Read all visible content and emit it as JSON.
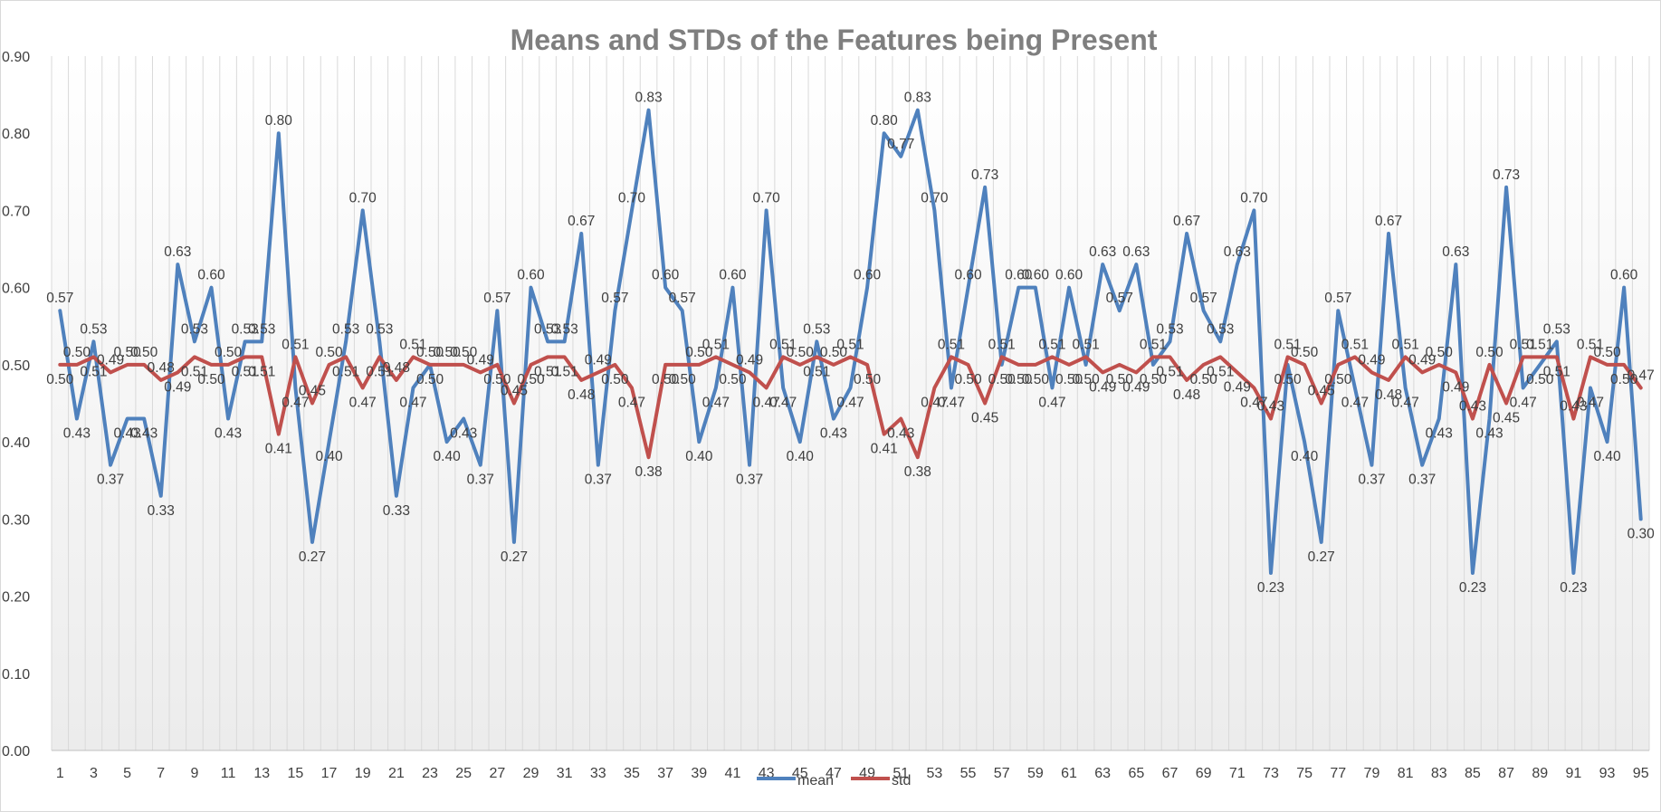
{
  "chart_data": {
    "type": "line",
    "title": "Means and STDs of the Features being Present",
    "xlabel": "",
    "ylabel": "",
    "ylim": [
      0,
      0.9
    ],
    "y_ticks": [
      "0.00",
      "0.10",
      "0.20",
      "0.30",
      "0.40",
      "0.50",
      "0.60",
      "0.70",
      "0.80",
      "0.90"
    ],
    "x": [
      1,
      2,
      3,
      4,
      5,
      6,
      7,
      8,
      9,
      10,
      11,
      12,
      13,
      14,
      15,
      16,
      17,
      18,
      19,
      20,
      21,
      22,
      23,
      24,
      25,
      26,
      27,
      28,
      29,
      30,
      31,
      32,
      33,
      34,
      35,
      36,
      37,
      38,
      39,
      40,
      41,
      42,
      43,
      44,
      45,
      46,
      47,
      48,
      49,
      50,
      51,
      52,
      53,
      54,
      55,
      56,
      57,
      58,
      59,
      60,
      61,
      62,
      63,
      64,
      65,
      66,
      67,
      68,
      69,
      70,
      71,
      72,
      73,
      74,
      75,
      76,
      77,
      78,
      79,
      80,
      81,
      82,
      83,
      84,
      85,
      86,
      87,
      88,
      89,
      90,
      91,
      92,
      93,
      94,
      95
    ],
    "x_tick_labels": [
      "1",
      "3",
      "5",
      "7",
      "9",
      "11",
      "13",
      "15",
      "17",
      "19",
      "21",
      "23",
      "25",
      "27",
      "29",
      "31",
      "33",
      "35",
      "37",
      "39",
      "41",
      "43",
      "45",
      "47",
      "49",
      "51",
      "53",
      "55",
      "57",
      "59",
      "61",
      "63",
      "65",
      "67",
      "69",
      "71",
      "73",
      "75",
      "77",
      "79",
      "81",
      "83",
      "85",
      "87",
      "89",
      "91",
      "93",
      "95"
    ],
    "grid": "vertical gridlines",
    "legend_position": "bottom",
    "series": [
      {
        "name": "mean",
        "color": "#4f81bd",
        "values": [
          0.57,
          0.43,
          0.53,
          0.37,
          0.43,
          0.43,
          0.33,
          0.63,
          0.53,
          0.6,
          0.43,
          0.53,
          0.53,
          0.8,
          0.47,
          0.27,
          0.4,
          0.53,
          0.7,
          0.53,
          0.33,
          0.47,
          0.5,
          0.4,
          0.43,
          0.37,
          0.57,
          0.27,
          0.6,
          0.53,
          0.53,
          0.67,
          0.37,
          0.57,
          0.7,
          0.83,
          0.6,
          0.57,
          0.4,
          0.47,
          0.6,
          0.37,
          0.7,
          0.47,
          0.4,
          0.53,
          0.43,
          0.47,
          0.6,
          0.8,
          0.77,
          0.83,
          0.7,
          0.47,
          0.6,
          0.73,
          0.5,
          0.6,
          0.6,
          0.47,
          0.6,
          0.5,
          0.63,
          0.57,
          0.63,
          0.5,
          0.53,
          0.67,
          0.57,
          0.53,
          0.63,
          0.7,
          0.23,
          0.5,
          0.4,
          0.27,
          0.57,
          0.47,
          0.37,
          0.67,
          0.47,
          0.37,
          0.43,
          0.63,
          0.23,
          0.43,
          0.73,
          0.47,
          0.5,
          0.53,
          0.23,
          0.47,
          0.4,
          0.6,
          0.3
        ],
        "labels": [
          "0.57",
          "0.43",
          "0.53",
          "0.37",
          "0.43",
          "0.43",
          "0.33",
          "0.63",
          "0.53",
          "0.60",
          "0.43",
          "0.53",
          "0.53",
          "0.80",
          "0.47",
          "0.27",
          "0.40",
          "0.53",
          "0.70",
          "0.53",
          "0.33",
          "0.47",
          "0.50",
          "0.40",
          "0.43",
          "0.37",
          "0.57",
          "0.27",
          "0.60",
          "0.53",
          "0.53",
          "0.67",
          "0.37",
          "0.57",
          "0.70",
          "0.83",
          "0.60",
          "0.57",
          "0.40",
          "0.47",
          "0.60",
          "0.37",
          "0.70",
          "0.47",
          "0.40",
          "0.53",
          "0.43",
          "0.47",
          "0.60",
          "0.80",
          "0.77",
          "0.83",
          "0.70",
          "0.47",
          "0.60",
          "0.73",
          "0.50",
          "0.60",
          "0.60",
          "0.47",
          "0.60",
          "0.50",
          "0.63",
          "0.57",
          "0.63",
          "0.50",
          "0.53",
          "0.67",
          "0.57",
          "0.53",
          "0.63",
          "0.70",
          "0.23",
          "0.50",
          "0.40",
          "0.27",
          "0.57",
          "0.47",
          "0.37",
          "0.67",
          "0.47",
          "0.37",
          "0.43",
          "0.63",
          "0.23",
          "0.43",
          "0.73",
          "0.47",
          "0.50",
          "0.53",
          "0.23",
          "0.47",
          "0.40",
          "0.60",
          "0.30"
        ]
      },
      {
        "name": "std",
        "color": "#c0504d",
        "values": [
          0.5,
          0.5,
          0.51,
          0.49,
          0.5,
          0.5,
          0.48,
          0.49,
          0.51,
          0.5,
          0.5,
          0.51,
          0.51,
          0.41,
          0.51,
          0.45,
          0.5,
          0.51,
          0.47,
          0.51,
          0.48,
          0.51,
          0.5,
          0.5,
          0.5,
          0.49,
          0.5,
          0.45,
          0.5,
          0.51,
          0.51,
          0.48,
          0.49,
          0.5,
          0.47,
          0.38,
          0.5,
          0.5,
          0.5,
          0.51,
          0.5,
          0.49,
          0.47,
          0.51,
          0.5,
          0.51,
          0.5,
          0.51,
          0.5,
          0.41,
          0.43,
          0.38,
          0.47,
          0.51,
          0.5,
          0.45,
          0.51,
          0.5,
          0.5,
          0.51,
          0.5,
          0.51,
          0.49,
          0.5,
          0.49,
          0.51,
          0.51,
          0.48,
          0.5,
          0.51,
          0.49,
          0.47,
          0.43,
          0.51,
          0.5,
          0.45,
          0.5,
          0.51,
          0.49,
          0.48,
          0.51,
          0.49,
          0.5,
          0.49,
          0.43,
          0.5,
          0.45,
          0.51,
          0.51,
          0.51,
          0.43,
          0.51,
          0.5,
          0.5,
          0.47
        ],
        "labels": [
          "0.50",
          "0.50",
          "0.51",
          "0.49",
          "0.50",
          "0.50",
          "0.48",
          "0.49",
          "0.51",
          "0.50",
          "0.50",
          "0.51",
          "0.51",
          "0.41",
          "0.51",
          "0.45",
          "0.50",
          "0.51",
          "0.47",
          "0.51",
          "0.48",
          "0.51",
          "0.50",
          "0.50",
          "0.50",
          "0.49",
          "0.50",
          "0.45",
          "0.50",
          "0.51",
          "0.51",
          "0.48",
          "0.49",
          "0.50",
          "0.47",
          "0.38",
          "0.50",
          "0.50",
          "0.50",
          "0.51",
          "0.50",
          "0.49",
          "0.47",
          "0.51",
          "0.50",
          "0.51",
          "0.50",
          "0.51",
          "0.50",
          "0.41",
          "0.43",
          "0.38",
          "0.47",
          "0.51",
          "0.50",
          "0.45",
          "0.51",
          "0.50",
          "0.50",
          "0.51",
          "0.50",
          "0.51",
          "0.49",
          "0.50",
          "0.49",
          "0.51",
          "0.51",
          "0.48",
          "0.50",
          "0.51",
          "0.49",
          "0.47",
          "0.43",
          "0.51",
          "0.50",
          "0.45",
          "0.50",
          "0.51",
          "0.49",
          "0.48",
          "0.51",
          "0.49",
          "0.50",
          "0.49",
          "0.43",
          "0.50",
          "0.45",
          "0.51",
          "0.51",
          "0.51",
          "0.43",
          "0.51",
          "0.50",
          "0.50",
          "0.47"
        ]
      }
    ]
  }
}
